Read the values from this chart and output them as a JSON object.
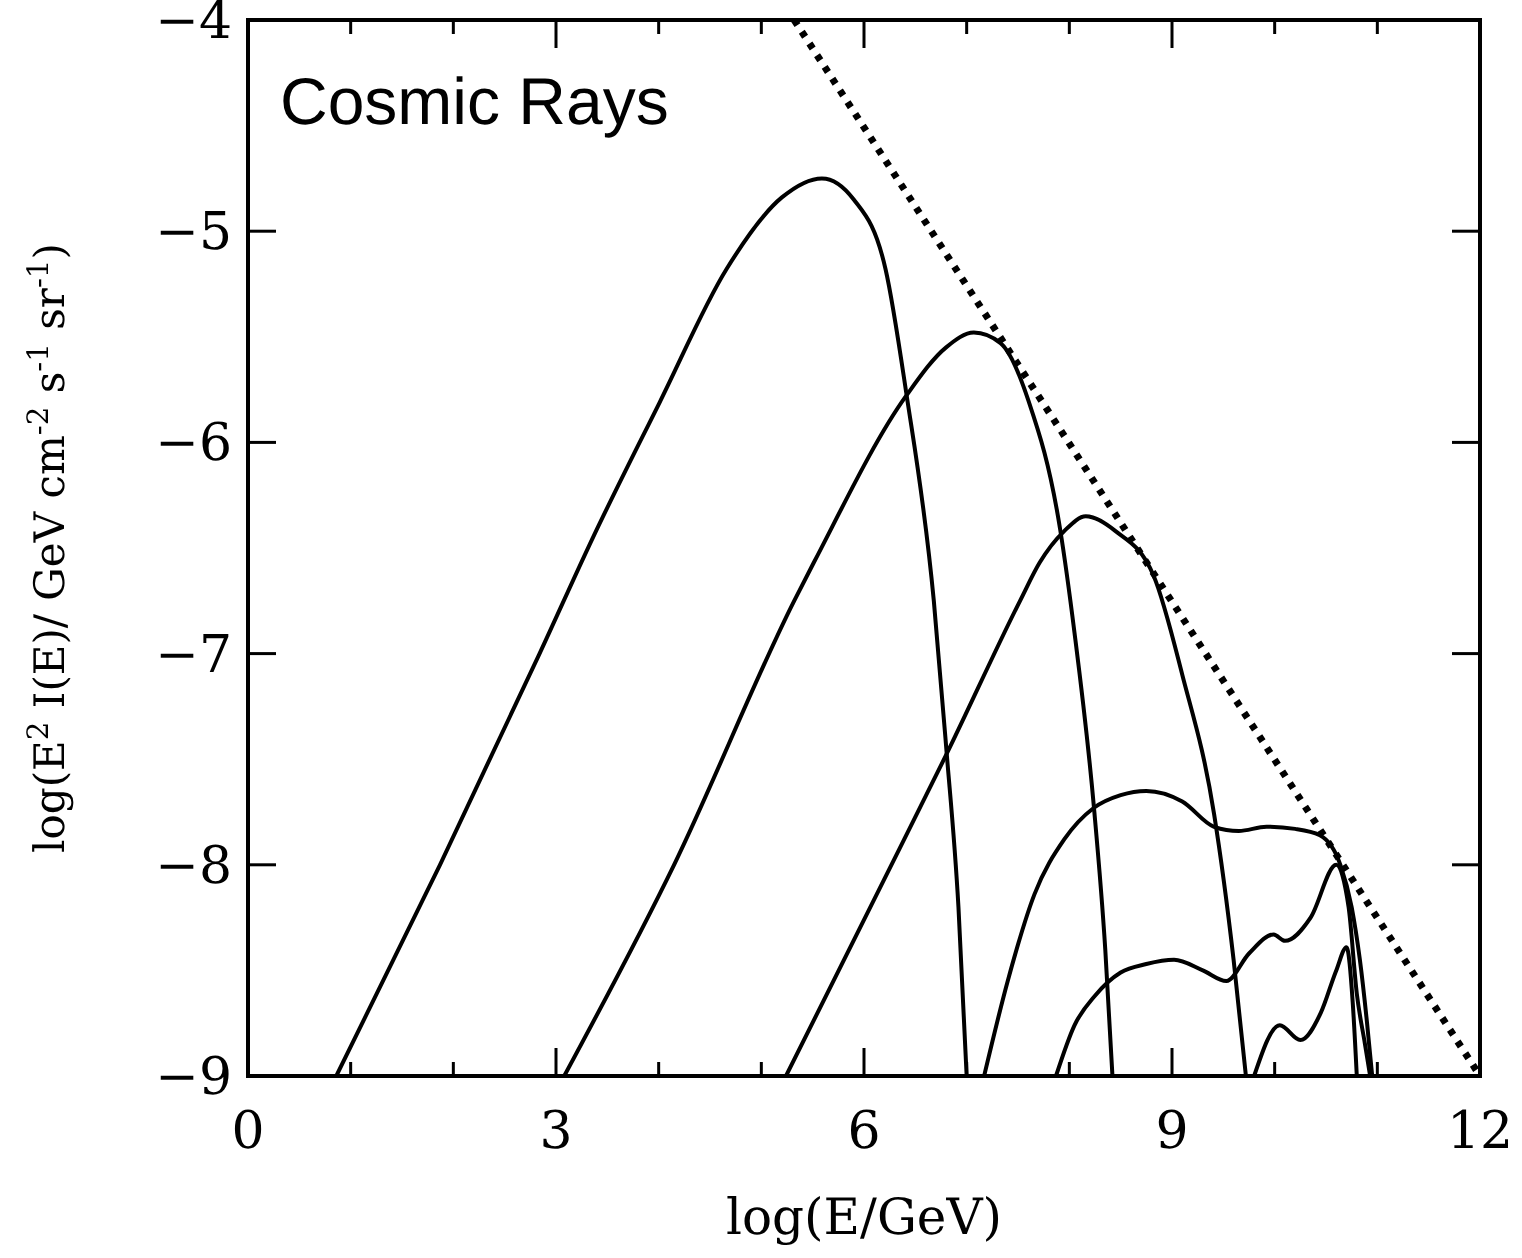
{
  "chart_data": {
    "type": "line",
    "title": "Cosmic Rays",
    "xlabel": "log(E/GeV)",
    "ylabel": "log(E$^{2}$ I(E)/ GeV cm$^{-2}$ s$^{-1}$ sr$^{-1}$)",
    "xlim": [
      0,
      12
    ],
    "ylim": [
      -9,
      -4
    ],
    "xticks": [
      0,
      {
        "value": 1,
        "label": null
      },
      {
        "value": 2,
        "label": null
      },
      3,
      {
        "value": 4,
        "label": null
      },
      {
        "value": 5,
        "label": null
      },
      6,
      {
        "value": 7,
        "label": null
      },
      {
        "value": 8,
        "label": null
      },
      9,
      {
        "value": 10,
        "label": null
      },
      {
        "value": 11,
        "label": null
      },
      12
    ],
    "yticks": [
      -9,
      -8,
      -7,
      -6,
      -5,
      -4
    ],
    "grid": false,
    "marker": "none",
    "series": [
      {
        "color": "#000000",
        "x": [
          0.86,
          1.87,
          2.84,
          3.37,
          4.01,
          4.66,
          5.2,
          5.59,
          5.9,
          6.21,
          6.41,
          6.68,
          6.8,
          6.92,
          7.0
        ],
        "values": [
          -9,
          -8,
          -7,
          -6.44,
          -5.81,
          -5.18,
          -4.84,
          -4.75,
          -4.85,
          -5.18,
          -5.76,
          -6.75,
          -7.44,
          -8.2,
          -9
        ]
      },
      {
        "color": "#000000",
        "x": [
          3.08,
          4.15,
          5.32,
          5.51,
          6.41,
          6.8,
          7.07,
          7.33,
          7.6,
          7.91,
          8.05,
          8.24,
          8.35,
          8.42
        ],
        "values": [
          -9,
          -8,
          -6.75,
          -6.57,
          -5.78,
          -5.55,
          -5.48,
          -5.53,
          -5.8,
          -6.41,
          -6.9,
          -7.73,
          -8.4,
          -9
        ]
      },
      {
        "color": "#000000",
        "x": [
          5.24,
          6.35,
          6.8,
          7.52,
          7.71,
          7.95,
          8.16,
          8.45,
          8.82,
          9.1,
          9.41,
          9.6,
          9.72
        ],
        "values": [
          -9,
          -7.92,
          -7.48,
          -6.75,
          -6.57,
          -6.42,
          -6.35,
          -6.42,
          -6.63,
          -7.1,
          -7.76,
          -8.45,
          -9
        ]
      },
      {
        "color": "#000000",
        "x": [
          7.17,
          7.4,
          7.66,
          7.95,
          8.24,
          8.5,
          8.75,
          9.1,
          9.41,
          9.65,
          9.92,
          10.2,
          10.44,
          10.64,
          10.75,
          10.83,
          10.9,
          10.95
        ],
        "values": [
          -9,
          -8.55,
          -8.14,
          -7.88,
          -7.73,
          -7.67,
          -7.65,
          -7.7,
          -7.82,
          -7.84,
          -7.82,
          -7.83,
          -7.86,
          -8.0,
          -8.2,
          -8.45,
          -8.75,
          -9
        ]
      },
      {
        "color": "#000000",
        "x": [
          7.87,
          8.05,
          8.25,
          8.5,
          8.75,
          9.02,
          9.3,
          9.53,
          9.75,
          9.99,
          10.1,
          10.35,
          10.6,
          10.72,
          10.8,
          10.88,
          10.93
        ],
        "values": [
          -9,
          -8.76,
          -8.62,
          -8.51,
          -8.47,
          -8.45,
          -8.5,
          -8.55,
          -8.42,
          -8.33,
          -8.36,
          -8.25,
          -8.0,
          -8.2,
          -8.61,
          -8.85,
          -9
        ]
      },
      {
        "color": "#000000",
        "x": [
          9.8,
          10.05,
          10.25,
          10.45,
          10.6,
          10.7,
          10.76,
          10.8
        ],
        "values": [
          -9,
          -8.76,
          -8.83,
          -8.7,
          -8.5,
          -8.39,
          -8.65,
          -9
        ]
      },
      {
        "color": "#000000",
        "x": [
          5.32,
          12
        ],
        "values": [
          -4,
          -9
        ],
        "line_style": "dotted"
      }
    ]
  }
}
